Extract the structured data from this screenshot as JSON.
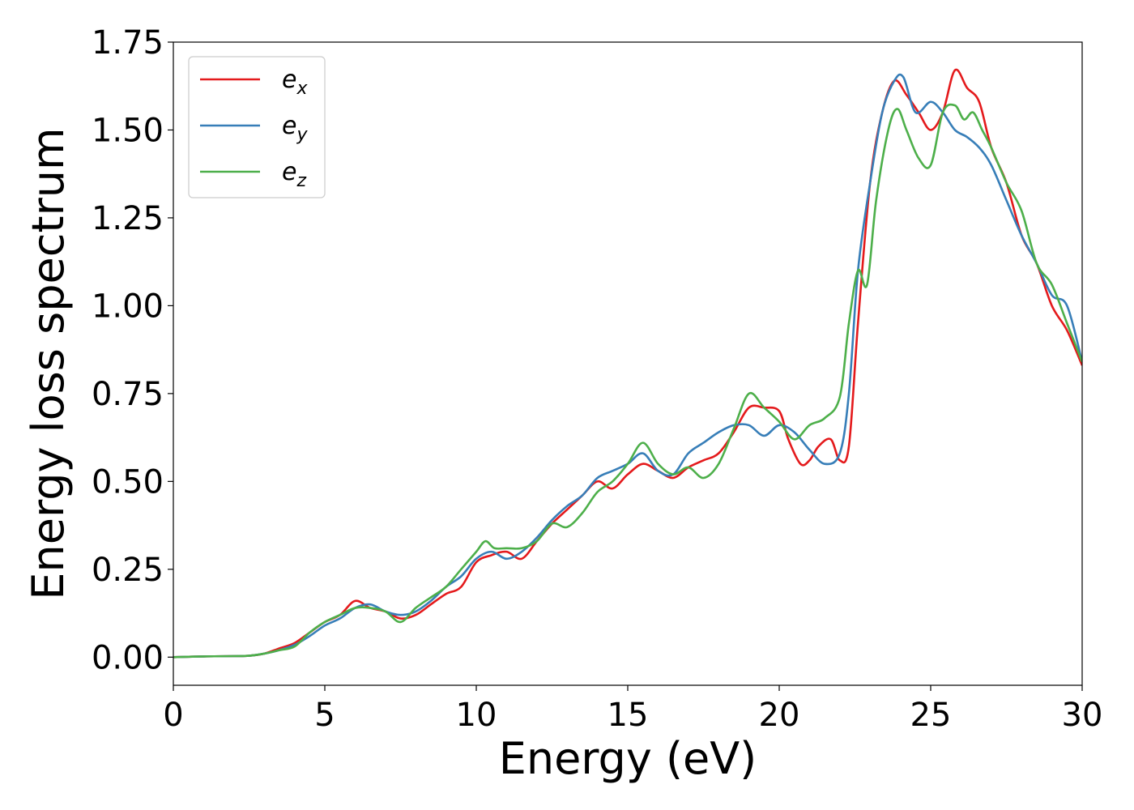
{
  "chart_data": {
    "type": "line",
    "xlabel": "Energy (eV)",
    "ylabel": "Energy loss spectrum",
    "xlim": [
      0,
      30
    ],
    "ylim": [
      -0.08,
      1.75
    ],
    "xticks": [
      0,
      5,
      10,
      15,
      20,
      25,
      30
    ],
    "xtick_labels": [
      "0",
      "5",
      "10",
      "15",
      "20",
      "25",
      "30"
    ],
    "yticks": [
      0.0,
      0.25,
      0.5,
      0.75,
      1.0,
      1.25,
      1.5,
      1.75
    ],
    "ytick_labels": [
      "0.00",
      "0.25",
      "0.50",
      "0.75",
      "1.00",
      "1.25",
      "1.50",
      "1.75"
    ],
    "grid": false,
    "legend_position": "top-left",
    "series": [
      {
        "name": "e_x",
        "label_base": "e",
        "label_sub": "x",
        "color": "#e41a1c",
        "x": [
          0,
          1,
          2,
          2.5,
          3,
          3.5,
          4,
          4.5,
          5,
          5.5,
          6,
          6.5,
          7,
          7.5,
          8,
          8.5,
          9,
          9.5,
          10,
          10.5,
          11,
          11.5,
          12,
          12.5,
          13,
          13.5,
          14,
          14.5,
          15,
          15.5,
          16,
          16.5,
          17,
          17.5,
          18,
          18.5,
          19,
          19.5,
          20,
          20.3,
          20.7,
          21,
          21.3,
          21.7,
          22,
          22.3,
          22.6,
          23,
          23.4,
          23.8,
          24.2,
          24.6,
          25,
          25.4,
          25.8,
          26.2,
          26.6,
          27,
          27.5,
          28,
          28.5,
          29,
          29.5,
          30
        ],
        "y": [
          0,
          0.002,
          0.003,
          0.004,
          0.01,
          0.025,
          0.04,
          0.07,
          0.1,
          0.12,
          0.16,
          0.14,
          0.13,
          0.11,
          0.12,
          0.15,
          0.18,
          0.2,
          0.27,
          0.29,
          0.3,
          0.28,
          0.33,
          0.38,
          0.42,
          0.46,
          0.5,
          0.48,
          0.52,
          0.55,
          0.53,
          0.51,
          0.54,
          0.56,
          0.58,
          0.64,
          0.71,
          0.71,
          0.7,
          0.62,
          0.55,
          0.56,
          0.6,
          0.62,
          0.56,
          0.6,
          0.95,
          1.35,
          1.55,
          1.64,
          1.6,
          1.55,
          1.5,
          1.55,
          1.67,
          1.62,
          1.58,
          1.45,
          1.35,
          1.2,
          1.12,
          1.0,
          0.93,
          0.83
        ]
      },
      {
        "name": "e_y",
        "label_base": "e",
        "label_sub": "y",
        "color": "#377eb8",
        "x": [
          0,
          1,
          2,
          2.5,
          3,
          3.5,
          4,
          4.5,
          5,
          5.5,
          6,
          6.5,
          7,
          7.5,
          8,
          8.5,
          9,
          9.5,
          10,
          10.5,
          11,
          11.5,
          12,
          12.5,
          13,
          13.5,
          14,
          14.5,
          15,
          15.5,
          16,
          16.5,
          17,
          17.5,
          18,
          18.5,
          19,
          19.5,
          20,
          20.5,
          21,
          21.5,
          22,
          22.3,
          22.6,
          23,
          23.4,
          23.8,
          24.1,
          24.5,
          25,
          25.4,
          25.8,
          26.2,
          26.6,
          27,
          27.5,
          28,
          28.5,
          29,
          29.5,
          30
        ],
        "y": [
          0,
          0.002,
          0.003,
          0.004,
          0.01,
          0.02,
          0.035,
          0.06,
          0.09,
          0.11,
          0.14,
          0.15,
          0.13,
          0.12,
          0.13,
          0.16,
          0.2,
          0.23,
          0.28,
          0.3,
          0.28,
          0.3,
          0.34,
          0.39,
          0.43,
          0.46,
          0.51,
          0.53,
          0.55,
          0.58,
          0.53,
          0.52,
          0.58,
          0.61,
          0.64,
          0.66,
          0.66,
          0.63,
          0.66,
          0.64,
          0.59,
          0.55,
          0.58,
          0.75,
          1.1,
          1.35,
          1.55,
          1.64,
          1.65,
          1.55,
          1.58,
          1.55,
          1.5,
          1.48,
          1.45,
          1.4,
          1.3,
          1.2,
          1.12,
          1.03,
          1.0,
          0.84
        ]
      },
      {
        "name": "e_z",
        "label_base": "e",
        "label_sub": "z",
        "color": "#4daf4a",
        "x": [
          0,
          1,
          2,
          2.5,
          3,
          3.5,
          4,
          4.5,
          5,
          5.5,
          6,
          6.5,
          7,
          7.5,
          8,
          8.5,
          9,
          9.5,
          10,
          10.3,
          10.6,
          11,
          11.5,
          12,
          12.5,
          13,
          13.5,
          14,
          14.5,
          15,
          15.5,
          16,
          16.5,
          17,
          17.5,
          18,
          18.5,
          19,
          19.5,
          20,
          20.5,
          21,
          21.5,
          22,
          22.3,
          22.6,
          22.9,
          23.2,
          23.6,
          23.9,
          24.2,
          24.6,
          25,
          25.4,
          25.8,
          26.1,
          26.4,
          26.7,
          27,
          27.5,
          28,
          28.5,
          29,
          29.5,
          30
        ],
        "y": [
          0,
          0.002,
          0.003,
          0.004,
          0.01,
          0.02,
          0.03,
          0.07,
          0.1,
          0.12,
          0.14,
          0.14,
          0.13,
          0.1,
          0.14,
          0.17,
          0.2,
          0.25,
          0.3,
          0.33,
          0.31,
          0.31,
          0.31,
          0.33,
          0.38,
          0.37,
          0.41,
          0.47,
          0.5,
          0.55,
          0.61,
          0.55,
          0.52,
          0.54,
          0.51,
          0.55,
          0.65,
          0.75,
          0.71,
          0.67,
          0.62,
          0.66,
          0.68,
          0.74,
          0.95,
          1.1,
          1.06,
          1.3,
          1.5,
          1.56,
          1.5,
          1.42,
          1.4,
          1.55,
          1.57,
          1.53,
          1.55,
          1.5,
          1.45,
          1.35,
          1.27,
          1.12,
          1.06,
          0.95,
          0.84
        ]
      }
    ]
  }
}
